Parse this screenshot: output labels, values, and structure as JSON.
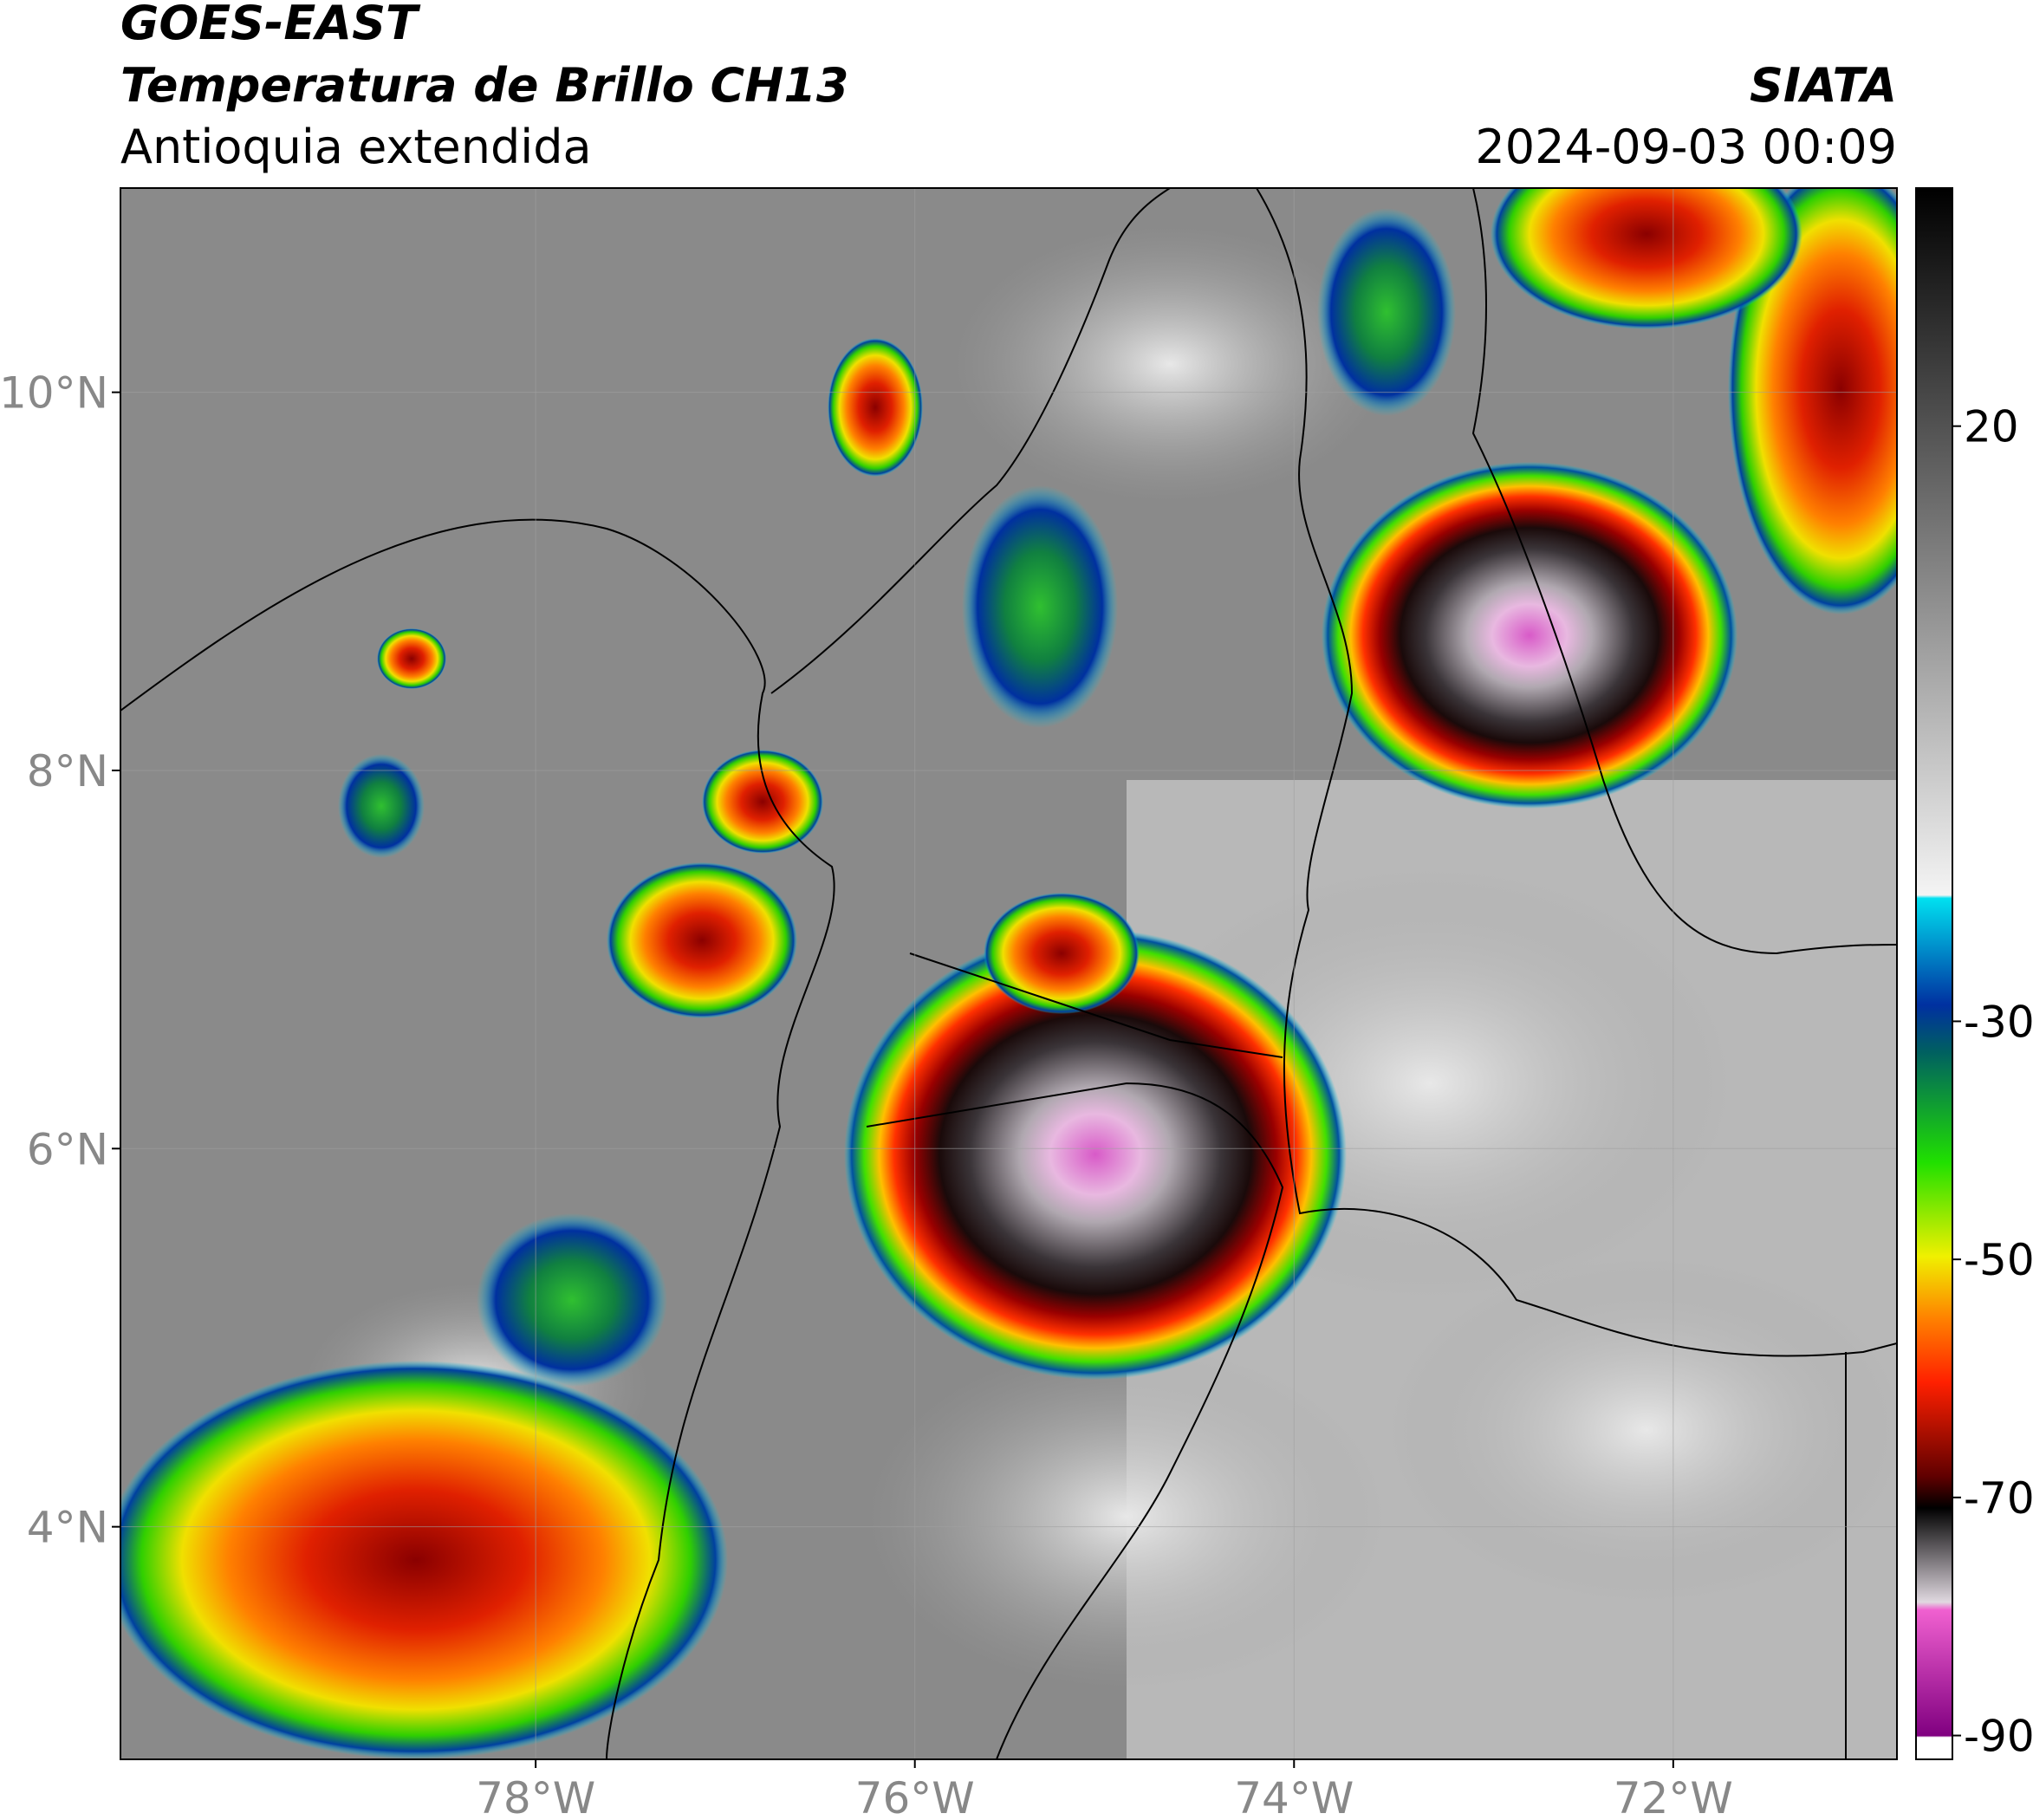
{
  "header": {
    "title": "GOES-EAST",
    "subtitle": "Temperatura de Brillo CH13",
    "region": "Antioquia extendida",
    "source": "SIATA",
    "datetime": "2024-09-03 00:09"
  },
  "map": {
    "lat_range": [
      2.77,
      11.08
    ],
    "lon_range": [
      -80.19,
      -70.82
    ],
    "lat_ticks": [
      {
        "value": 10,
        "label": "10°N"
      },
      {
        "value": 8,
        "label": "8°N"
      },
      {
        "value": 6,
        "label": "6°N"
      },
      {
        "value": 4,
        "label": "4°N"
      }
    ],
    "lon_ticks": [
      {
        "value": -78,
        "label": "78°W"
      },
      {
        "value": -76,
        "label": "76°W"
      },
      {
        "value": -74,
        "label": "74°W"
      },
      {
        "value": -72,
        "label": "72°W"
      }
    ],
    "grid": true
  },
  "colorbar": {
    "range": [
      -92,
      40
    ],
    "ticks": [
      20,
      -30,
      -50,
      -70,
      -90
    ]
  }
}
